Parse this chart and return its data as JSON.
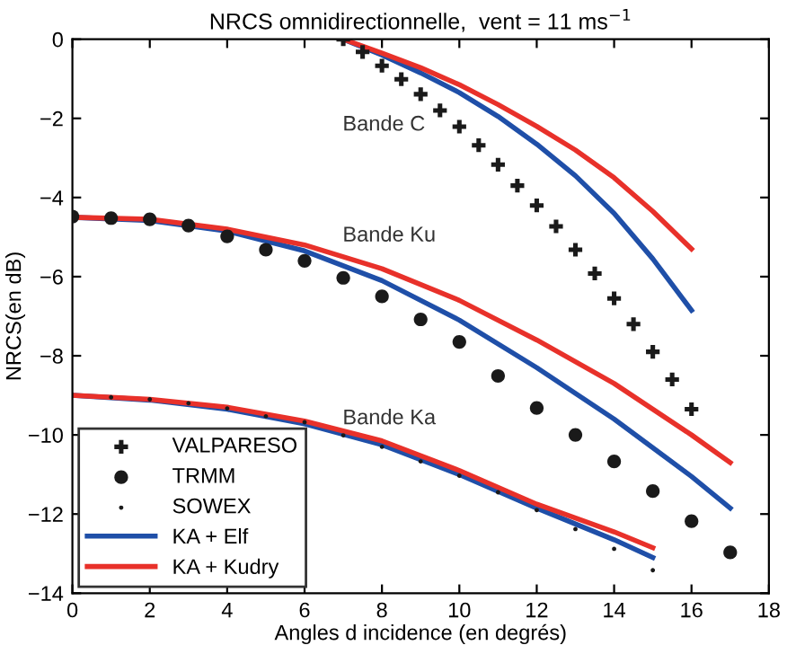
{
  "chart_data": {
    "type": "line",
    "title": "NRCS omnidirectionnelle,  vent = 11 ms$^{−1}$",
    "xlabel": "Angles d incidence (en degrés)",
    "ylabel": "NRCS(en dB)",
    "xlim": [
      0,
      18
    ],
    "ylim": [
      -14,
      0
    ],
    "xticks": [
      0,
      2,
      4,
      6,
      8,
      10,
      12,
      14,
      16,
      18
    ],
    "yticks": [
      -14,
      -12,
      -10,
      -8,
      -6,
      -4,
      -2,
      0
    ],
    "grid": false,
    "legend": "bottom left",
    "annotations": [
      "Bande C",
      "Bande Ku",
      "Bande Ka"
    ],
    "series": [
      {
        "name": "VALPARESO",
        "type": "scatter",
        "marker": "cross",
        "color": "#1a1a1a",
        "x": [
          7,
          7.5,
          8,
          8.5,
          9,
          9.5,
          10,
          10.5,
          11,
          11.5,
          12,
          12.5,
          13,
          13.5,
          14,
          14.5,
          15,
          15.5,
          16
        ],
        "values": [
          0,
          -0.32,
          -0.67,
          -1.01,
          -1.39,
          -1.8,
          -2.21,
          -2.68,
          -3.17,
          -3.7,
          -4.2,
          -4.73,
          -5.32,
          -5.92,
          -6.55,
          -7.2,
          -7.9,
          -8.6,
          -9.35
        ]
      },
      {
        "name": "TRMM",
        "type": "scatter",
        "marker": "circle",
        "color": "#1a1a1a",
        "x": [
          0,
          1,
          2,
          3,
          4,
          5,
          6,
          7,
          8,
          9,
          10,
          11,
          12,
          13,
          14,
          15,
          16,
          17
        ],
        "values": [
          -4.48,
          -4.52,
          -4.55,
          -4.71,
          -4.98,
          -5.32,
          -5.6,
          -6.03,
          -6.5,
          -7.08,
          -7.65,
          -8.51,
          -9.32,
          -10.0,
          -10.67,
          -11.42,
          -12.18,
          -12.97
        ]
      },
      {
        "name": "SOWEX",
        "type": "scatter",
        "marker": "circle",
        "color": "#1a1a1a",
        "x": [
          1,
          2,
          3,
          4,
          5,
          6,
          7,
          8,
          9,
          10,
          11,
          12,
          13,
          14,
          15
        ],
        "values": [
          -9.05,
          -9.1,
          -9.2,
          -9.33,
          -9.53,
          -9.68,
          -10.01,
          -10.3,
          -10.67,
          -11.03,
          -11.45,
          -11.9,
          -12.38,
          -12.88,
          -13.42
        ]
      },
      {
        "name": "KA + Elf",
        "color": "#1f4fa8",
        "x": [
          0,
          2,
          4,
          6,
          8,
          10,
          12,
          14,
          15
        ],
        "values": [
          -9.0,
          -9.12,
          -9.35,
          -9.72,
          -10.25,
          -11.0,
          -11.85,
          -12.65,
          -13.1
        ]
      },
      {
        "color": "#1f4fa8",
        "x": [
          0,
          2,
          4,
          6,
          8,
          10,
          12,
          14,
          16,
          17
        ],
        "values": [
          -4.5,
          -4.58,
          -4.85,
          -5.35,
          -6.1,
          -7.1,
          -8.3,
          -9.6,
          -11.05,
          -11.85
        ]
      },
      {
        "color": "#1f4fa8",
        "x": [
          7,
          8,
          9,
          10,
          11,
          12,
          13,
          14,
          15,
          16
        ],
        "values": [
          0,
          -0.4,
          -0.85,
          -1.35,
          -1.95,
          -2.65,
          -3.45,
          -4.4,
          -5.55,
          -6.85
        ]
      },
      {
        "name": "KA + Kudry",
        "color": "#e8312a",
        "x": [
          0,
          2,
          4,
          6,
          8,
          10,
          12,
          14,
          15
        ],
        "values": [
          -9.0,
          -9.1,
          -9.3,
          -9.65,
          -10.15,
          -10.9,
          -11.75,
          -12.45,
          -12.85
        ]
      },
      {
        "color": "#e8312a",
        "x": [
          0,
          2,
          4,
          6,
          8,
          10,
          12,
          14,
          16,
          17
        ],
        "values": [
          -4.5,
          -4.55,
          -4.8,
          -5.2,
          -5.8,
          -6.6,
          -7.6,
          -8.7,
          -10.0,
          -10.7
        ]
      },
      {
        "color": "#e8312a",
        "x": [
          7,
          8,
          9,
          10,
          11,
          12,
          13,
          14,
          15,
          16
        ],
        "values": [
          0,
          -0.35,
          -0.72,
          -1.15,
          -1.65,
          -2.2,
          -2.8,
          -3.5,
          -4.35,
          -5.3
        ]
      }
    ]
  }
}
